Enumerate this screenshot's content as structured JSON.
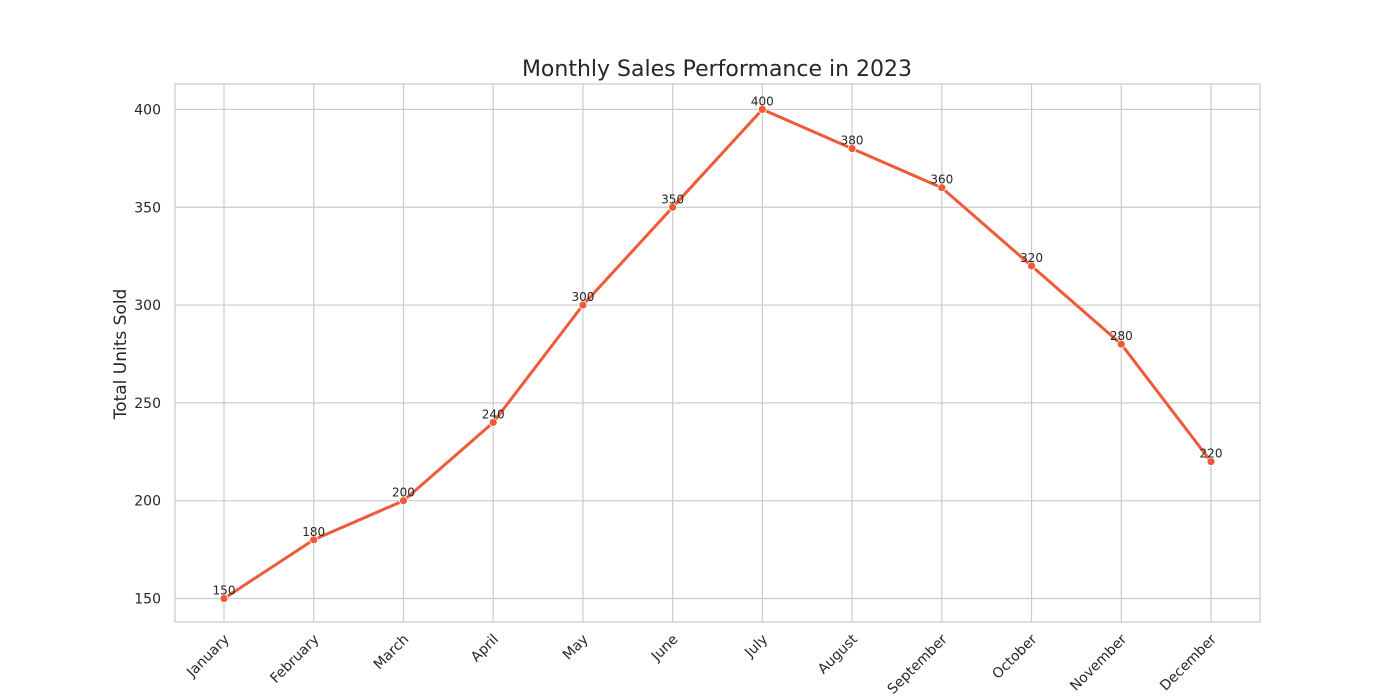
{
  "chart_data": {
    "type": "line",
    "title": "Monthly Sales Performance in 2023",
    "xlabel": "",
    "ylabel": "Total Units Sold",
    "categories": [
      "January",
      "February",
      "March",
      "April",
      "May",
      "June",
      "July",
      "August",
      "September",
      "October",
      "November",
      "December"
    ],
    "series": [
      {
        "values": [
          150,
          180,
          200,
          240,
          300,
          350,
          400,
          380,
          360,
          320,
          280,
          220
        ],
        "color": "#f05a38",
        "marker": "circle"
      }
    ],
    "yticks": [
      "150",
      "200",
      "250",
      "300",
      "350",
      "400"
    ],
    "ylim": [
      138,
      413
    ],
    "grid": true,
    "data_labels": true,
    "legend": "none"
  }
}
